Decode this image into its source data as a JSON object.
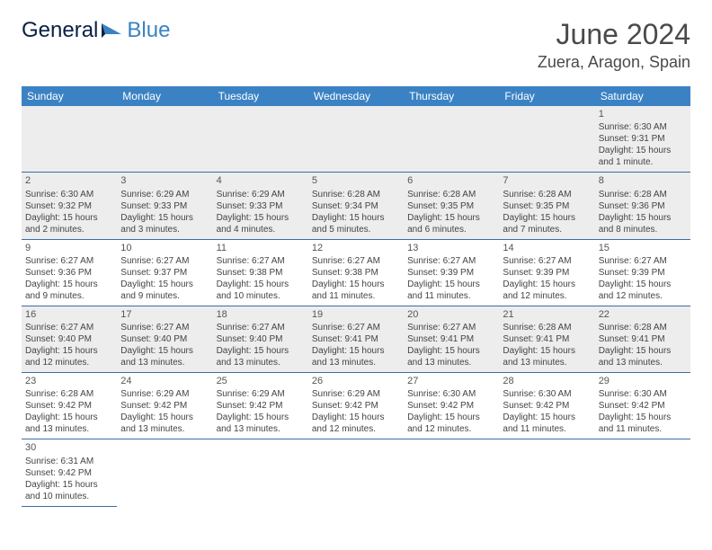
{
  "logo": {
    "text1": "General",
    "text2": "Blue"
  },
  "header": {
    "month": "June 2024",
    "location": "Zuera, Aragon, Spain"
  },
  "days": [
    "Sunday",
    "Monday",
    "Tuesday",
    "Wednesday",
    "Thursday",
    "Friday",
    "Saturday"
  ],
  "colors": {
    "header_bg": "#3b82c4",
    "header_text": "#ffffff",
    "row_alt_bg": "#ededed",
    "border": "#3b6ea5",
    "logo_dark": "#0a1f44",
    "logo_blue": "#3b82c4"
  },
  "weeks": [
    [
      null,
      null,
      null,
      null,
      null,
      null,
      {
        "n": "1",
        "sr": "Sunrise: 6:30 AM",
        "ss": "Sunset: 9:31 PM",
        "d1": "Daylight: 15 hours",
        "d2": "and 1 minute."
      }
    ],
    [
      {
        "n": "2",
        "sr": "Sunrise: 6:30 AM",
        "ss": "Sunset: 9:32 PM",
        "d1": "Daylight: 15 hours",
        "d2": "and 2 minutes."
      },
      {
        "n": "3",
        "sr": "Sunrise: 6:29 AM",
        "ss": "Sunset: 9:33 PM",
        "d1": "Daylight: 15 hours",
        "d2": "and 3 minutes."
      },
      {
        "n": "4",
        "sr": "Sunrise: 6:29 AM",
        "ss": "Sunset: 9:33 PM",
        "d1": "Daylight: 15 hours",
        "d2": "and 4 minutes."
      },
      {
        "n": "5",
        "sr": "Sunrise: 6:28 AM",
        "ss": "Sunset: 9:34 PM",
        "d1": "Daylight: 15 hours",
        "d2": "and 5 minutes."
      },
      {
        "n": "6",
        "sr": "Sunrise: 6:28 AM",
        "ss": "Sunset: 9:35 PM",
        "d1": "Daylight: 15 hours",
        "d2": "and 6 minutes."
      },
      {
        "n": "7",
        "sr": "Sunrise: 6:28 AM",
        "ss": "Sunset: 9:35 PM",
        "d1": "Daylight: 15 hours",
        "d2": "and 7 minutes."
      },
      {
        "n": "8",
        "sr": "Sunrise: 6:28 AM",
        "ss": "Sunset: 9:36 PM",
        "d1": "Daylight: 15 hours",
        "d2": "and 8 minutes."
      }
    ],
    [
      {
        "n": "9",
        "sr": "Sunrise: 6:27 AM",
        "ss": "Sunset: 9:36 PM",
        "d1": "Daylight: 15 hours",
        "d2": "and 9 minutes."
      },
      {
        "n": "10",
        "sr": "Sunrise: 6:27 AM",
        "ss": "Sunset: 9:37 PM",
        "d1": "Daylight: 15 hours",
        "d2": "and 9 minutes."
      },
      {
        "n": "11",
        "sr": "Sunrise: 6:27 AM",
        "ss": "Sunset: 9:38 PM",
        "d1": "Daylight: 15 hours",
        "d2": "and 10 minutes."
      },
      {
        "n": "12",
        "sr": "Sunrise: 6:27 AM",
        "ss": "Sunset: 9:38 PM",
        "d1": "Daylight: 15 hours",
        "d2": "and 11 minutes."
      },
      {
        "n": "13",
        "sr": "Sunrise: 6:27 AM",
        "ss": "Sunset: 9:39 PM",
        "d1": "Daylight: 15 hours",
        "d2": "and 11 minutes."
      },
      {
        "n": "14",
        "sr": "Sunrise: 6:27 AM",
        "ss": "Sunset: 9:39 PM",
        "d1": "Daylight: 15 hours",
        "d2": "and 12 minutes."
      },
      {
        "n": "15",
        "sr": "Sunrise: 6:27 AM",
        "ss": "Sunset: 9:39 PM",
        "d1": "Daylight: 15 hours",
        "d2": "and 12 minutes."
      }
    ],
    [
      {
        "n": "16",
        "sr": "Sunrise: 6:27 AM",
        "ss": "Sunset: 9:40 PM",
        "d1": "Daylight: 15 hours",
        "d2": "and 12 minutes."
      },
      {
        "n": "17",
        "sr": "Sunrise: 6:27 AM",
        "ss": "Sunset: 9:40 PM",
        "d1": "Daylight: 15 hours",
        "d2": "and 13 minutes."
      },
      {
        "n": "18",
        "sr": "Sunrise: 6:27 AM",
        "ss": "Sunset: 9:40 PM",
        "d1": "Daylight: 15 hours",
        "d2": "and 13 minutes."
      },
      {
        "n": "19",
        "sr": "Sunrise: 6:27 AM",
        "ss": "Sunset: 9:41 PM",
        "d1": "Daylight: 15 hours",
        "d2": "and 13 minutes."
      },
      {
        "n": "20",
        "sr": "Sunrise: 6:27 AM",
        "ss": "Sunset: 9:41 PM",
        "d1": "Daylight: 15 hours",
        "d2": "and 13 minutes."
      },
      {
        "n": "21",
        "sr": "Sunrise: 6:28 AM",
        "ss": "Sunset: 9:41 PM",
        "d1": "Daylight: 15 hours",
        "d2": "and 13 minutes."
      },
      {
        "n": "22",
        "sr": "Sunrise: 6:28 AM",
        "ss": "Sunset: 9:41 PM",
        "d1": "Daylight: 15 hours",
        "d2": "and 13 minutes."
      }
    ],
    [
      {
        "n": "23",
        "sr": "Sunrise: 6:28 AM",
        "ss": "Sunset: 9:42 PM",
        "d1": "Daylight: 15 hours",
        "d2": "and 13 minutes."
      },
      {
        "n": "24",
        "sr": "Sunrise: 6:29 AM",
        "ss": "Sunset: 9:42 PM",
        "d1": "Daylight: 15 hours",
        "d2": "and 13 minutes."
      },
      {
        "n": "25",
        "sr": "Sunrise: 6:29 AM",
        "ss": "Sunset: 9:42 PM",
        "d1": "Daylight: 15 hours",
        "d2": "and 13 minutes."
      },
      {
        "n": "26",
        "sr": "Sunrise: 6:29 AM",
        "ss": "Sunset: 9:42 PM",
        "d1": "Daylight: 15 hours",
        "d2": "and 12 minutes."
      },
      {
        "n": "27",
        "sr": "Sunrise: 6:30 AM",
        "ss": "Sunset: 9:42 PM",
        "d1": "Daylight: 15 hours",
        "d2": "and 12 minutes."
      },
      {
        "n": "28",
        "sr": "Sunrise: 6:30 AM",
        "ss": "Sunset: 9:42 PM",
        "d1": "Daylight: 15 hours",
        "d2": "and 11 minutes."
      },
      {
        "n": "29",
        "sr": "Sunrise: 6:30 AM",
        "ss": "Sunset: 9:42 PM",
        "d1": "Daylight: 15 hours",
        "d2": "and 11 minutes."
      }
    ],
    [
      {
        "n": "30",
        "sr": "Sunrise: 6:31 AM",
        "ss": "Sunset: 9:42 PM",
        "d1": "Daylight: 15 hours",
        "d2": "and 10 minutes."
      },
      null,
      null,
      null,
      null,
      null,
      null
    ]
  ]
}
